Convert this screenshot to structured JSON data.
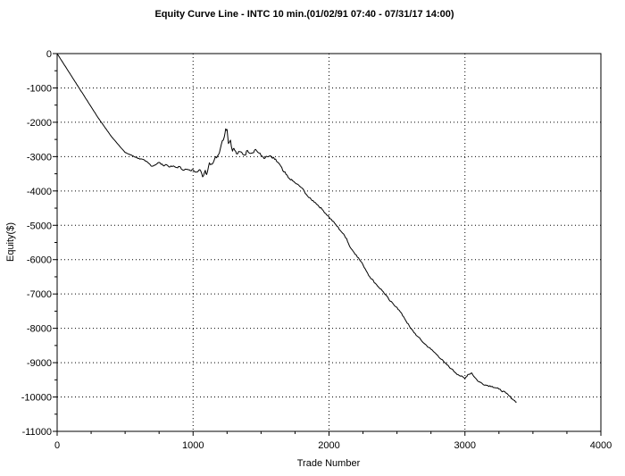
{
  "chart_data": {
    "type": "line",
    "title": "Equity Curve Line - INTC 10 min.(01/02/91 07:40 - 07/31/17 14:00)",
    "xlabel": "Trade Number",
    "ylabel": "Equity($)",
    "xlim": [
      0,
      4000
    ],
    "ylim": [
      -11000,
      0
    ],
    "x_ticks": [
      "0",
      "1000",
      "2000",
      "3000",
      "4000"
    ],
    "y_ticks": [
      "0",
      "-1000",
      "-2000",
      "-3000",
      "-4000",
      "-5000",
      "-6000",
      "-7000",
      "-8000",
      "-9000",
      "-10000",
      "-11000"
    ],
    "grid": true,
    "legend": "none",
    "line_color": "#000000",
    "series": [
      {
        "x": [
          0,
          100,
          200,
          300,
          400,
          500,
          600,
          650,
          700,
          750,
          780,
          800,
          830,
          850,
          880,
          900,
          920,
          950,
          980,
          1000,
          1020,
          1050,
          1070,
          1090,
          1100,
          1120,
          1140,
          1160,
          1180,
          1200,
          1215,
          1230,
          1240,
          1250,
          1260,
          1275,
          1290,
          1300,
          1320,
          1350,
          1380,
          1400,
          1430,
          1460,
          1500,
          1530,
          1560,
          1600,
          1630,
          1660,
          1700,
          1750,
          1800,
          1850,
          1900,
          1950,
          2000,
          2050,
          2100,
          2130,
          2150,
          2180,
          2200,
          2250,
          2300,
          2350,
          2400,
          2450,
          2500,
          2550,
          2600,
          2650,
          2700,
          2750,
          2800,
          2850,
          2900,
          2950,
          3000,
          3020,
          3050,
          3070,
          3100,
          3150,
          3200,
          3250,
          3300,
          3350,
          3380
        ],
        "y": [
          0,
          -620,
          -1240,
          -1860,
          -2420,
          -2880,
          -3050,
          -3130,
          -3280,
          -3170,
          -3260,
          -3230,
          -3300,
          -3280,
          -3320,
          -3290,
          -3380,
          -3370,
          -3410,
          -3380,
          -3450,
          -3380,
          -3590,
          -3400,
          -3520,
          -3180,
          -3220,
          -3050,
          -2980,
          -2780,
          -2540,
          -2420,
          -2190,
          -2210,
          -2620,
          -2520,
          -2840,
          -2760,
          -2920,
          -2860,
          -2960,
          -2820,
          -2900,
          -2790,
          -2970,
          -3040,
          -2990,
          -3080,
          -3190,
          -3410,
          -3610,
          -3760,
          -3910,
          -4190,
          -4340,
          -4540,
          -4760,
          -4980,
          -5230,
          -5390,
          -5600,
          -5770,
          -5860,
          -6150,
          -6500,
          -6730,
          -6940,
          -7210,
          -7390,
          -7670,
          -8000,
          -8230,
          -8440,
          -8610,
          -8790,
          -9000,
          -9180,
          -9350,
          -9460,
          -9350,
          -9300,
          -9420,
          -9550,
          -9650,
          -9690,
          -9770,
          -9880,
          -10060,
          -10150
        ]
      }
    ]
  }
}
